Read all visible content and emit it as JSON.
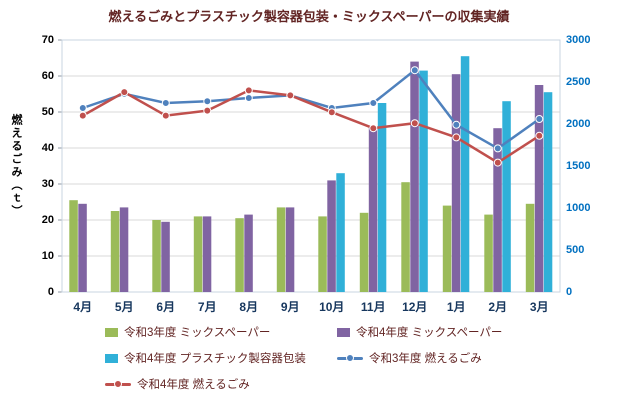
{
  "chart_data": {
    "type": "combo-bar-line",
    "title": "燃えるごみとプラスチック製容器包装・ミックスペーパーの収集実績",
    "categories": [
      "4月",
      "5月",
      "6月",
      "7月",
      "8月",
      "9月",
      "10月",
      "11月",
      "12月",
      "1月",
      "2月",
      "3月"
    ],
    "left_axis": {
      "label": "燃えるごみ（ｔ）",
      "min": 0,
      "max": 70,
      "step": 10,
      "ticks": [
        0,
        10,
        20,
        30,
        40,
        50,
        60,
        70
      ],
      "tick_color": "#000000"
    },
    "right_axis": {
      "min": 0,
      "max": 3000,
      "step": 500,
      "ticks": [
        0,
        500,
        1000,
        1500,
        2000,
        2500,
        3000
      ],
      "tick_color": "#0070C0"
    },
    "x_axis": {
      "tick_color": "#17375E"
    },
    "grid": true,
    "legend_position": "bottom",
    "bar_series": [
      {
        "name": "令和3年度 ミックスペーパー",
        "color": "#9BBB59",
        "axis": "left",
        "values": [
          25.5,
          22.5,
          20,
          21,
          20.5,
          23.5,
          21,
          22,
          30.5,
          24,
          21.5,
          24.5
        ]
      },
      {
        "name": "令和4年度 ミックスペーパー",
        "color": "#8064A2",
        "axis": "left",
        "values": [
          24.5,
          23.5,
          19.5,
          21,
          21.5,
          23.5,
          31,
          46,
          64,
          60.5,
          45.5,
          57.5
        ]
      },
      {
        "name": "令和4年度 プラスチック製容器包装",
        "color": "#30B0D8",
        "axis": "left",
        "values": [
          null,
          null,
          null,
          null,
          null,
          null,
          33,
          52.5,
          61.5,
          65.5,
          53,
          55.5
        ]
      }
    ],
    "line_series": [
      {
        "name": "令和3年度 燃えるごみ",
        "color": "#4F81BD",
        "axis": "right",
        "values": [
          2190,
          2360,
          2250,
          2270,
          2310,
          2340,
          2190,
          2250,
          2640,
          1990,
          1710,
          2060
        ]
      },
      {
        "name": "令和4年度 燃えるごみ",
        "color": "#C0504D",
        "axis": "right",
        "values": [
          2100,
          2380,
          2100,
          2160,
          2400,
          2340,
          2140,
          1950,
          2010,
          1840,
          1540,
          1860
        ]
      }
    ]
  }
}
